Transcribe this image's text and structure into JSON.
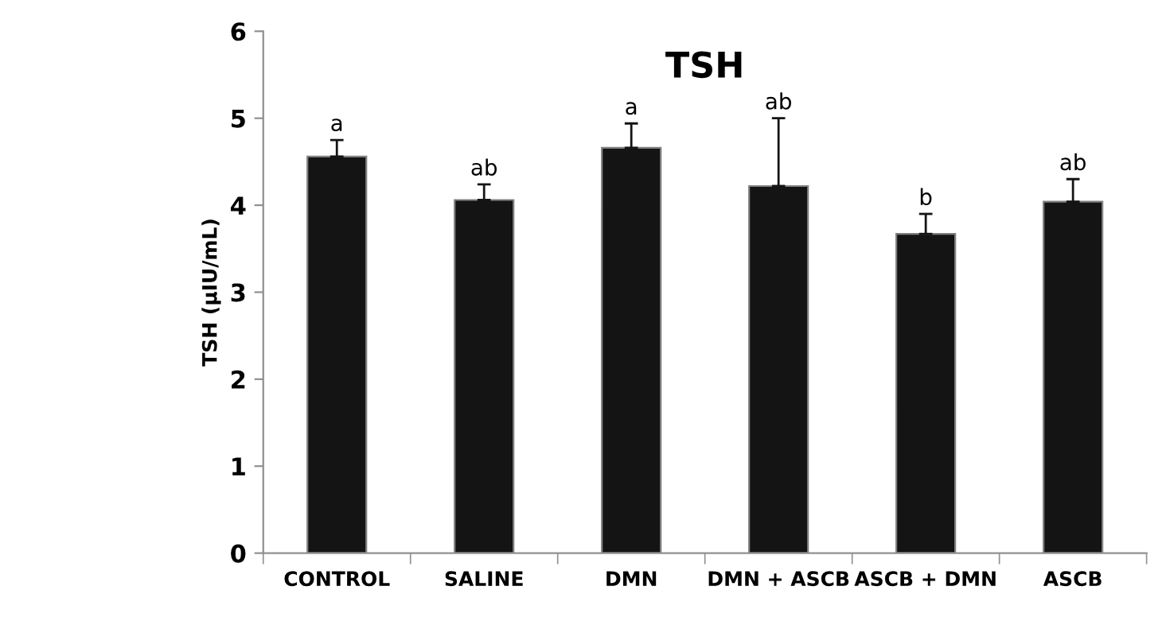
{
  "chart_data": {
    "type": "bar",
    "title": "TSH",
    "ylabel": "TSH (µIU/mL)",
    "categories": [
      "CONTROL",
      "SALINE",
      "DMN",
      "DMN + ASCB",
      "ASCB + DMN",
      "ASCB"
    ],
    "values": [
      4.56,
      4.06,
      4.66,
      4.22,
      3.67,
      4.04
    ],
    "errors": [
      [
        4.56,
        4.75
      ],
      [
        4.06,
        4.24
      ],
      [
        4.66,
        4.94
      ],
      [
        4.22,
        5.0
      ],
      [
        3.67,
        3.9
      ],
      [
        4.04,
        4.3
      ]
    ],
    "color": "#141414",
    "ylim": [
      0,
      6
    ],
    "yticks": [
      0,
      1,
      2,
      3,
      4,
      5,
      6
    ],
    "grid": false,
    "legend": false,
    "annotations": [
      {
        "text": "a",
        "x": "CONTROL",
        "y": 4.75
      },
      {
        "text": "ab",
        "x": "SALINE",
        "y": 4.24
      },
      {
        "text": "a",
        "x": "DMN",
        "y": 4.94
      },
      {
        "text": "ab",
        "x": "DMN + ASCB",
        "y": 5.0
      },
      {
        "text": "b",
        "x": "ASCB + DMN",
        "y": 3.9
      },
      {
        "text": "ab",
        "x": "ASCB",
        "y": 4.3
      }
    ]
  }
}
